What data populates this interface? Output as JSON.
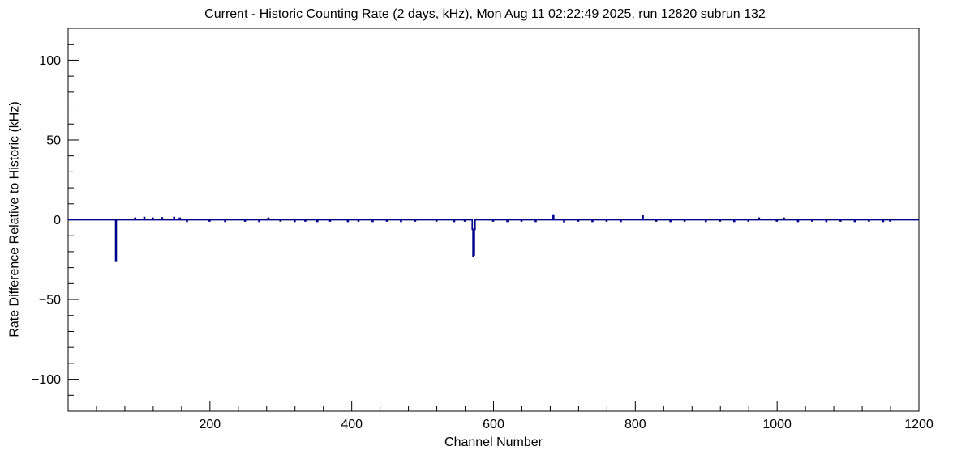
{
  "chart_data": {
    "type": "bar",
    "title": "Current - Historic Counting Rate (2 days, kHz), Mon Aug 11 02:22:49 2025, run 12820 subrun 132",
    "xlabel": "Channel Number",
    "ylabel": "Rate Difference Relative to Historic (kHz)",
    "xlim": [
      0,
      1200
    ],
    "ylim": [
      -120,
      120
    ],
    "x_major_ticks": [
      200,
      400,
      600,
      800,
      1000,
      1200
    ],
    "x_minor_step": 40,
    "y_major_ticks": [
      -100,
      -50,
      0,
      50,
      100
    ],
    "y_minor_step": 10,
    "n_channels": 1200,
    "baseline": 0,
    "line_color": "#00008B",
    "frame_color": "#000000",
    "grid": false,
    "legend": "none",
    "deviations": {
      "68": -26,
      "95": 1,
      "108": 1.5,
      "120": 1,
      "133": 1.2,
      "150": 1.5,
      "158": 1,
      "168": -1,
      "200": -0.8,
      "222": -1,
      "250": -0.8,
      "270": -1,
      "283": 1,
      "300": -0.8,
      "320": -1,
      "335": -0.8,
      "352": -1,
      "370": -0.8,
      "395": -1,
      "410": -0.8,
      "430": -1,
      "450": -0.8,
      "470": -1,
      "490": -0.8,
      "520": -0.8,
      "545": -1,
      "560": -0.8,
      "571": -6,
      "572": -23,
      "573": -22,
      "574": -6,
      "600": -0.8,
      "620": -1,
      "640": -0.8,
      "660": -1,
      "685": 3,
      "700": -1.2,
      "720": -0.8,
      "740": -1,
      "760": -0.8,
      "780": -1,
      "811": 2.5,
      "830": -0.8,
      "850": -1,
      "870": -0.8,
      "900": -1,
      "920": -0.8,
      "940": -1,
      "960": -0.8,
      "975": 1,
      "1000": -0.8,
      "1010": 1,
      "1030": -1,
      "1050": -0.8,
      "1070": -1,
      "1090": -0.8,
      "1110": -1,
      "1130": -0.8,
      "1150": -1,
      "1160": -0.8
    }
  }
}
